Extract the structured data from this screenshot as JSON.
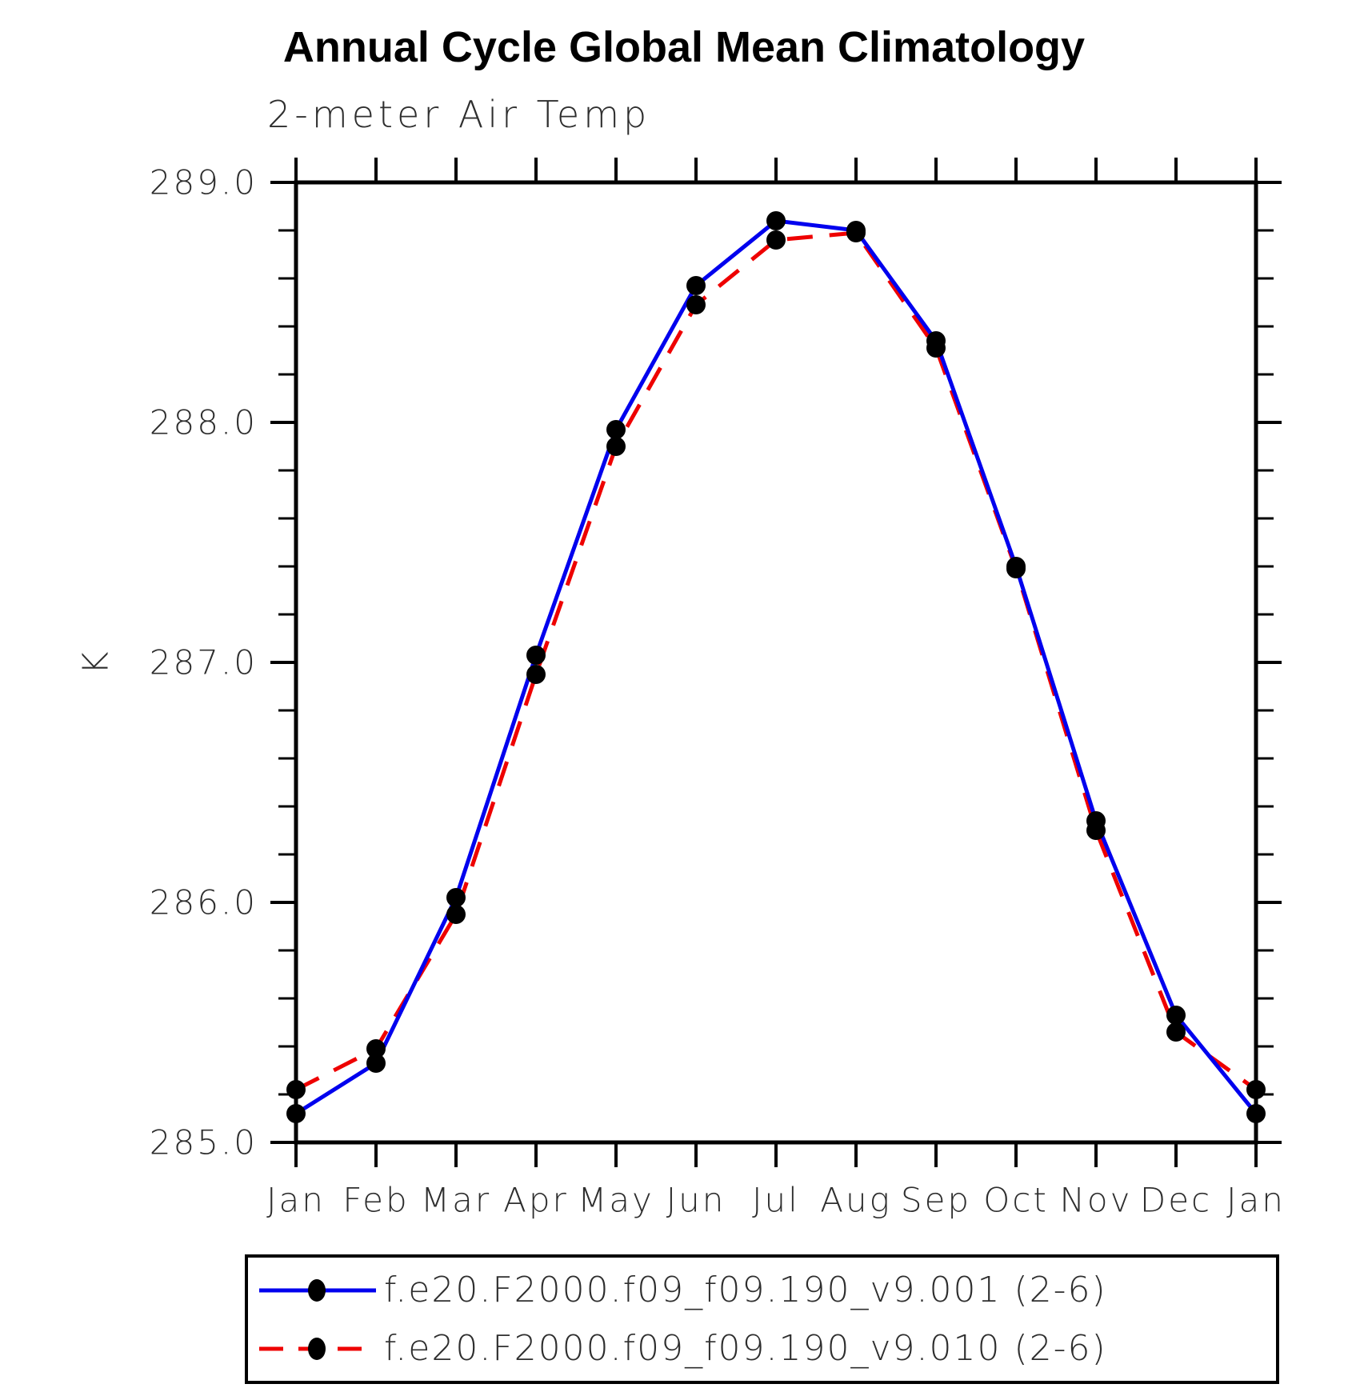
{
  "title": "Annual Cycle Global Mean Climatology",
  "subtitle": "2-meter Air Temp",
  "ylabel": "K",
  "chart_data": {
    "type": "line",
    "categories": [
      "Jan",
      "Feb",
      "Mar",
      "Apr",
      "May",
      "Jun",
      "Jul",
      "Aug",
      "Sep",
      "Oct",
      "Nov",
      "Dec",
      "Jan"
    ],
    "series": [
      {
        "name": "f.e20.F2000.f09_f09.190_v9.001 (2-6)",
        "color": "#0000ee",
        "style": "solid",
        "values": [
          285.12,
          285.33,
          286.02,
          287.03,
          287.97,
          288.57,
          288.84,
          288.8,
          288.34,
          287.4,
          286.34,
          285.53,
          285.12
        ]
      },
      {
        "name": "f.e20.F2000.f09_f09.190_v9.010 (2-6)",
        "color": "#ee0000",
        "style": "dashed",
        "values": [
          285.22,
          285.39,
          285.95,
          286.95,
          287.9,
          288.49,
          288.76,
          288.79,
          288.31,
          287.39,
          286.3,
          285.46,
          285.22
        ]
      }
    ],
    "marker": "filled-circle",
    "marker_color": "#000000",
    "axis_color": "#000000",
    "ylim": [
      285.0,
      289.0
    ],
    "yticks": [
      289.0,
      288.0,
      287.0,
      286.0,
      285.0
    ],
    "ytick_decimals": 1,
    "y_minor_step": 0.2,
    "grid": "off",
    "legend_position": "bottom"
  }
}
